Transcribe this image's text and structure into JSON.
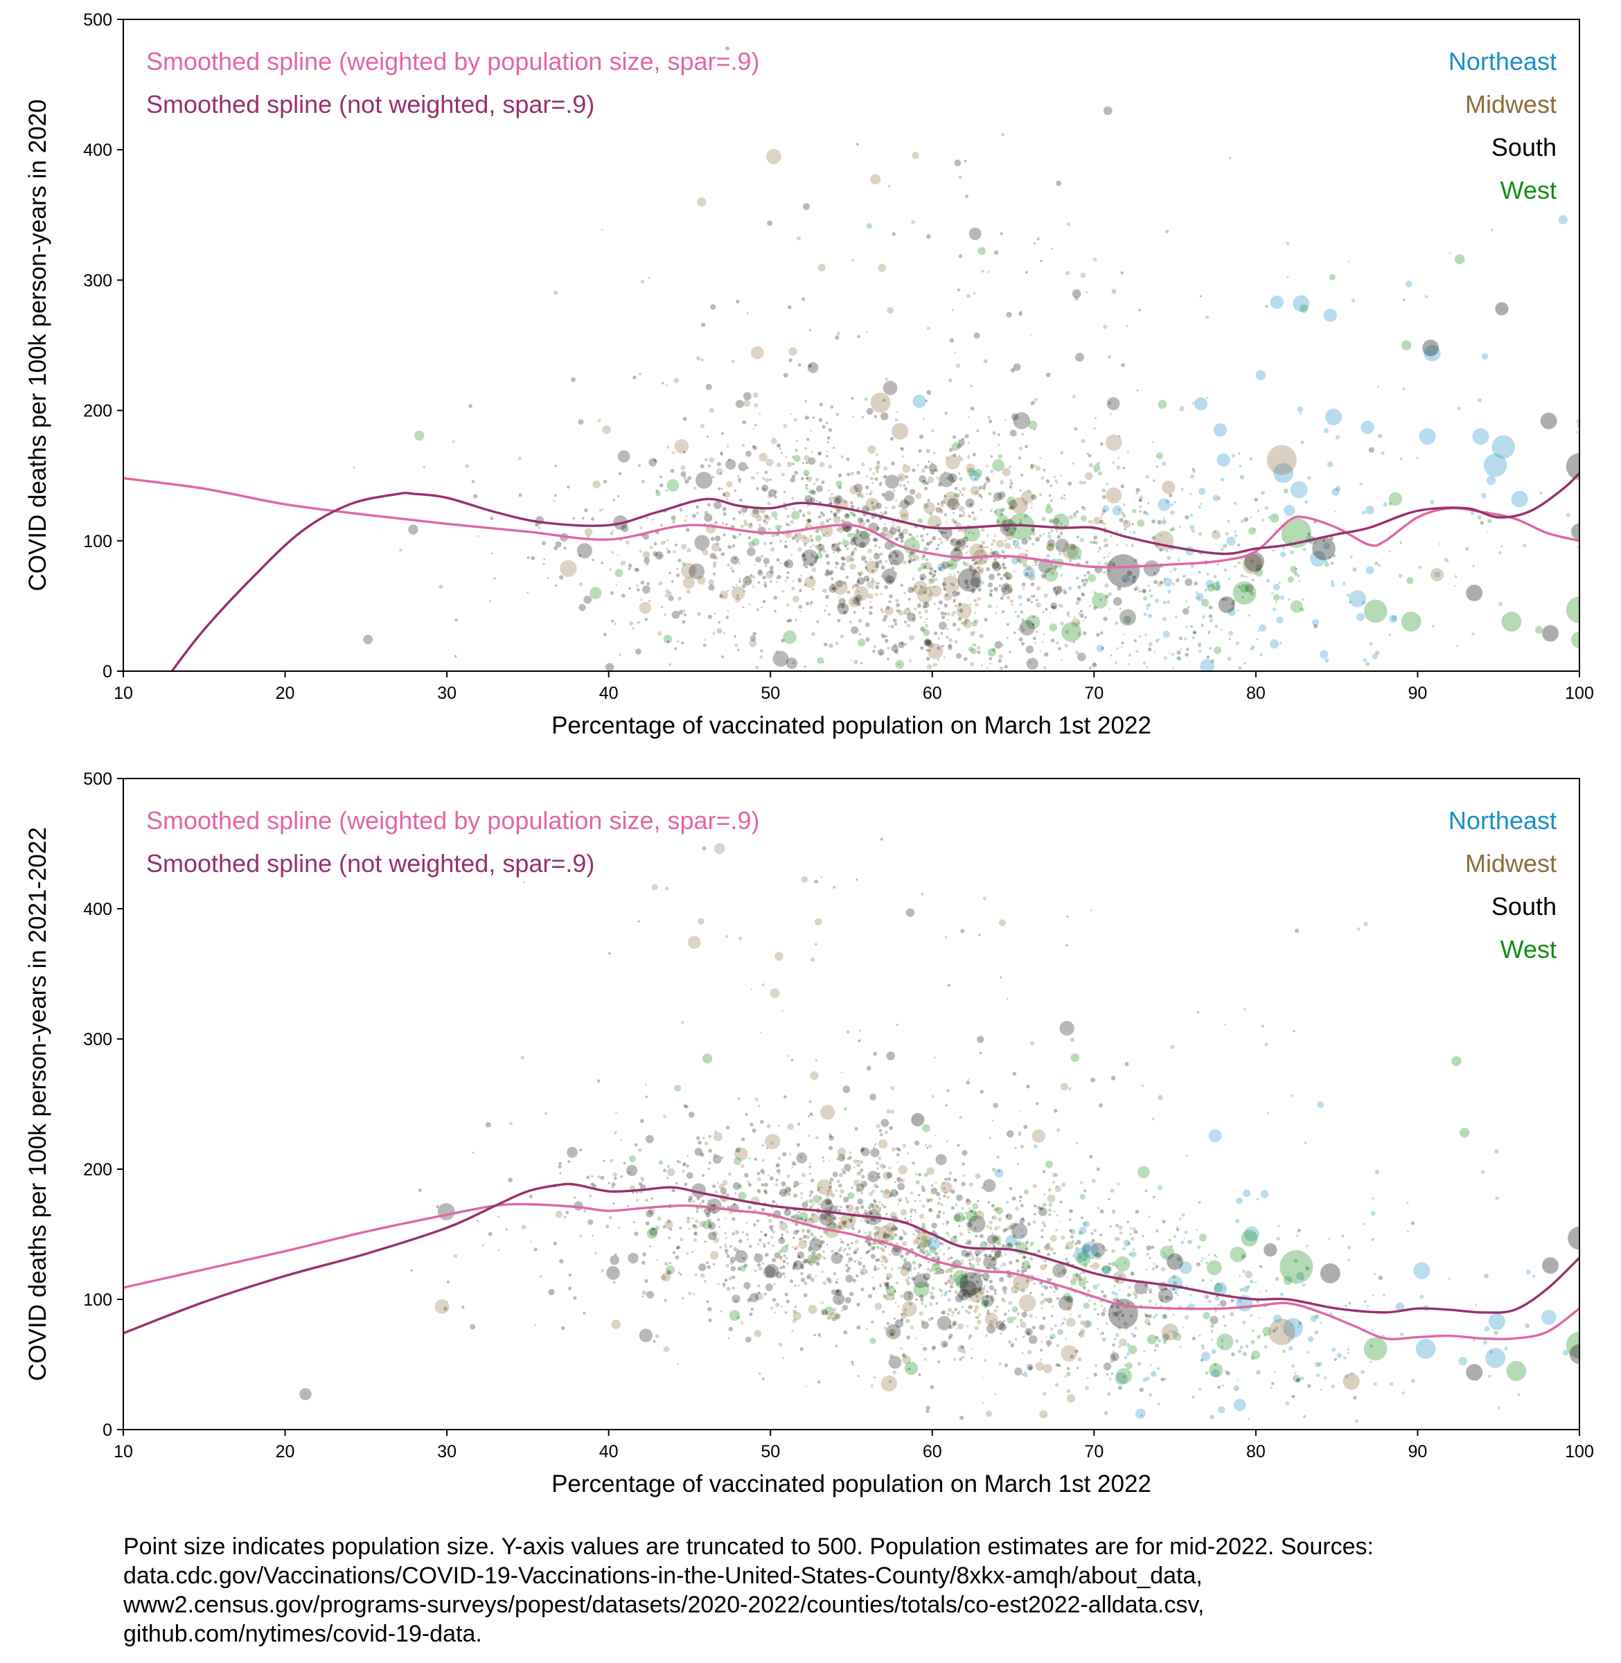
{
  "chart_data": [
    {
      "type": "scatter",
      "xlabel": "Percentage of vaccinated population on March 1st 2022",
      "ylabel": "COVID deaths per 100k person-years in 2020",
      "xlim": [
        10,
        100
      ],
      "ylim": [
        0,
        500
      ],
      "xticks": [
        10,
        20,
        30,
        40,
        50,
        60,
        70,
        80,
        90,
        100
      ],
      "yticks": [
        0,
        100,
        200,
        300,
        400,
        500
      ],
      "grid": false,
      "curves": [
        {
          "name": "Smoothed spline (weighted by population size, spar=.9)",
          "color": "#e066a6",
          "x": [
            10,
            15,
            20,
            25,
            30,
            35,
            40,
            45,
            50,
            55,
            58,
            60,
            62,
            65,
            70,
            75,
            78,
            80,
            82,
            83,
            85,
            87,
            88,
            90,
            92,
            94,
            96,
            98,
            100
          ],
          "y": [
            148,
            140,
            128,
            120,
            113,
            107,
            101,
            112,
            106,
            112,
            96,
            90,
            87,
            88,
            80,
            82,
            85,
            92,
            115,
            118,
            110,
            97,
            100,
            118,
            125,
            122,
            117,
            106,
            100
          ]
        },
        {
          "name": "Smoothed spline (not weighted, spar=.9)",
          "color": "#96306e",
          "x": [
            13,
            15,
            18,
            21,
            24,
            27,
            28,
            30,
            33,
            36,
            40,
            43,
            46,
            48,
            50,
            52,
            55,
            58,
            60,
            62,
            65,
            68,
            70,
            72,
            75,
            78,
            80,
            82,
            85,
            87,
            90,
            93,
            95,
            97,
            99,
            100
          ],
          "y": [
            0,
            32,
            72,
            107,
            128,
            136,
            136,
            133,
            122,
            114,
            112,
            122,
            132,
            127,
            125,
            129,
            124,
            115,
            110,
            110,
            112,
            110,
            110,
            103,
            95,
            90,
            94,
            97,
            105,
            110,
            123,
            125,
            118,
            123,
            140,
            152
          ]
        }
      ],
      "legend": [
        {
          "label": "Smoothed spline (weighted by population size, spar=.9)",
          "color": "#e066a6"
        },
        {
          "label": "Smoothed spline (not weighted, spar=.9)",
          "color": "#96306e"
        }
      ],
      "region_legend": [
        {
          "label": "Northeast",
          "color": "#1a8fc8"
        },
        {
          "label": "Midwest",
          "color": "#8c6d3c"
        },
        {
          "label": "South",
          "color": "#000000"
        },
        {
          "label": "West",
          "color": "#158b15"
        }
      ],
      "highlight_points": [
        {
          "region": "Northeast",
          "x": 81.3,
          "y": 283,
          "size": 4
        },
        {
          "region": "Northeast",
          "x": 82.8,
          "y": 282,
          "size": 5
        },
        {
          "region": "Northeast",
          "x": 84.6,
          "y": 273,
          "size": 4
        },
        {
          "region": "Northeast",
          "x": 90.9,
          "y": 244,
          "size": 5
        },
        {
          "region": "Northeast",
          "x": 80.3,
          "y": 227,
          "size": 3
        },
        {
          "region": "Northeast",
          "x": 76.6,
          "y": 205,
          "size": 4
        },
        {
          "region": "Northeast",
          "x": 84.8,
          "y": 195,
          "size": 5
        },
        {
          "region": "Northeast",
          "x": 90.6,
          "y": 180,
          "size": 5
        },
        {
          "region": "Northeast",
          "x": 93.9,
          "y": 180,
          "size": 5
        },
        {
          "region": "Northeast",
          "x": 95.3,
          "y": 172,
          "size": 7
        },
        {
          "region": "Northeast",
          "x": 94.8,
          "y": 158,
          "size": 7
        },
        {
          "region": "Northeast",
          "x": 96.3,
          "y": 132,
          "size": 5
        },
        {
          "region": "Northeast",
          "x": 81.7,
          "y": 152,
          "size": 6
        },
        {
          "region": "Northeast",
          "x": 78.0,
          "y": 162,
          "size": 4
        },
        {
          "region": "Northeast",
          "x": 59.2,
          "y": 207,
          "size": 4
        },
        {
          "region": "Northeast",
          "x": 86.9,
          "y": 187,
          "size": 4
        },
        {
          "region": "Northeast",
          "x": 77.8,
          "y": 185,
          "size": 4
        },
        {
          "region": "Midwest",
          "x": 81.6,
          "y": 162,
          "size": 9
        },
        {
          "region": "Midwest",
          "x": 56.8,
          "y": 206,
          "size": 6
        },
        {
          "region": "Midwest",
          "x": 58.0,
          "y": 184,
          "size": 5
        },
        {
          "region": "Midwest",
          "x": 74.3,
          "y": 100,
          "size": 6
        },
        {
          "region": "Midwest",
          "x": 79.8,
          "y": 82,
          "size": 6
        },
        {
          "region": "Midwest",
          "x": 91.2,
          "y": 74,
          "size": 4
        },
        {
          "region": "Midwest",
          "x": 65.4,
          "y": 127,
          "size": 5
        },
        {
          "region": "Midwest",
          "x": 74.6,
          "y": 141,
          "size": 4
        },
        {
          "region": "South",
          "x": 90.8,
          "y": 248,
          "size": 5
        },
        {
          "region": "South",
          "x": 95.2,
          "y": 278,
          "size": 4
        },
        {
          "region": "South",
          "x": 98.1,
          "y": 192,
          "size": 5
        },
        {
          "region": "South",
          "x": 100.0,
          "y": 157,
          "size": 8
        },
        {
          "region": "South",
          "x": 100.0,
          "y": 107,
          "size": 5
        },
        {
          "region": "South",
          "x": 71.8,
          "y": 77,
          "size": 10
        },
        {
          "region": "South",
          "x": 84.2,
          "y": 94,
          "size": 7
        },
        {
          "region": "South",
          "x": 62.3,
          "y": 70,
          "size": 7
        },
        {
          "region": "South",
          "x": 93.5,
          "y": 60,
          "size": 5
        },
        {
          "region": "South",
          "x": 98.2,
          "y": 29,
          "size": 5
        },
        {
          "region": "South",
          "x": 78.2,
          "y": 51,
          "size": 5
        },
        {
          "region": "South",
          "x": 79.9,
          "y": 84,
          "size": 6
        },
        {
          "region": "West",
          "x": 82.5,
          "y": 106,
          "size": 9
        },
        {
          "region": "West",
          "x": 87.4,
          "y": 46,
          "size": 7
        },
        {
          "region": "West",
          "x": 100.0,
          "y": 47,
          "size": 8
        },
        {
          "region": "West",
          "x": 100.0,
          "y": 24,
          "size": 5
        },
        {
          "region": "West",
          "x": 95.8,
          "y": 38,
          "size": 6
        },
        {
          "region": "West",
          "x": 89.6,
          "y": 38,
          "size": 6
        },
        {
          "region": "West",
          "x": 79.3,
          "y": 60,
          "size": 7
        },
        {
          "region": "West",
          "x": 65.5,
          "y": 111,
          "size": 8
        },
        {
          "region": "West",
          "x": 68.6,
          "y": 30,
          "size": 6
        },
        {
          "region": "West",
          "x": 92.6,
          "y": 316,
          "size": 3
        },
        {
          "region": "West",
          "x": 89.3,
          "y": 250,
          "size": 3
        }
      ]
    },
    {
      "type": "scatter",
      "xlabel": "Percentage of vaccinated population on March 1st 2022",
      "ylabel": "COVID deaths per 100k person-years in 2021-2022",
      "xlim": [
        10,
        100
      ],
      "ylim": [
        0,
        500
      ],
      "xticks": [
        10,
        20,
        30,
        40,
        50,
        60,
        70,
        80,
        90,
        100
      ],
      "yticks": [
        0,
        100,
        200,
        300,
        400,
        500
      ],
      "grid": false,
      "curves": [
        {
          "name": "Smoothed spline (weighted by population size, spar=.9)",
          "color": "#e066a6",
          "x": [
            10,
            15,
            20,
            25,
            30,
            33,
            35,
            38,
            40,
            42,
            45,
            48,
            50,
            53,
            55,
            58,
            60,
            63,
            65,
            68,
            70,
            72,
            75,
            78,
            80,
            82,
            84,
            86,
            88,
            90,
            92,
            94,
            96,
            98,
            100
          ],
          "y": [
            109,
            123,
            137,
            152,
            165,
            172,
            173,
            171,
            168,
            170,
            172,
            168,
            165,
            155,
            150,
            140,
            130,
            122,
            120,
            110,
            102,
            95,
            93,
            93,
            95,
            97,
            90,
            80,
            70,
            71,
            72,
            70,
            70,
            75,
            93
          ],
          "label": ""
        },
        {
          "name": "Smoothed spline (not weighted, spar=.9)",
          "color": "#96306e",
          "x": [
            10,
            15,
            20,
            25,
            30,
            33,
            35,
            37,
            38,
            40,
            42,
            44,
            46,
            50,
            53,
            55,
            58,
            60,
            62,
            65,
            68,
            70,
            72,
            75,
            78,
            80,
            82,
            85,
            88,
            90,
            92,
            94,
            96,
            98,
            100
          ],
          "y": [
            74,
            98,
            118,
            135,
            155,
            172,
            183,
            188,
            188,
            183,
            184,
            186,
            181,
            172,
            168,
            165,
            160,
            150,
            140,
            138,
            128,
            120,
            115,
            110,
            103,
            100,
            100,
            93,
            90,
            93,
            92,
            90,
            92,
            108,
            132
          ]
        }
      ],
      "legend": [
        {
          "label": "Smoothed spline (weighted by population size, spar=.9)",
          "color": "#e066a6"
        },
        {
          "label": "Smoothed spline (not weighted, spar=.9)",
          "color": "#96306e"
        }
      ],
      "region_legend": [
        {
          "label": "Northeast",
          "color": "#1a8fc8"
        },
        {
          "label": "Midwest",
          "color": "#8c6d3c"
        },
        {
          "label": "South",
          "color": "#000000"
        },
        {
          "label": "West",
          "color": "#158b15"
        }
      ],
      "highlight_points": [
        {
          "region": "West",
          "x": 82.5,
          "y": 125,
          "size": 10
        },
        {
          "region": "West",
          "x": 87.4,
          "y": 62,
          "size": 7
        },
        {
          "region": "West",
          "x": 100.0,
          "y": 65,
          "size": 8
        },
        {
          "region": "West",
          "x": 92.4,
          "y": 283,
          "size": 3
        },
        {
          "region": "West",
          "x": 92.9,
          "y": 228,
          "size": 3
        },
        {
          "region": "West",
          "x": 96.1,
          "y": 45,
          "size": 6
        },
        {
          "region": "West",
          "x": 79.6,
          "y": 147,
          "size": 5
        },
        {
          "region": "West",
          "x": 46.1,
          "y": 285,
          "size": 3
        },
        {
          "region": "West",
          "x": 58.7,
          "y": 47,
          "size": 4
        },
        {
          "region": "South",
          "x": 100.0,
          "y": 147,
          "size": 7
        },
        {
          "region": "South",
          "x": 98.2,
          "y": 126,
          "size": 5
        },
        {
          "region": "South",
          "x": 84.6,
          "y": 120,
          "size": 6
        },
        {
          "region": "South",
          "x": 71.8,
          "y": 89,
          "size": 9
        },
        {
          "region": "South",
          "x": 100.0,
          "y": 58,
          "size": 6
        },
        {
          "region": "South",
          "x": 80.9,
          "y": 138,
          "size": 4
        },
        {
          "region": "South",
          "x": 75.0,
          "y": 129,
          "size": 5
        },
        {
          "region": "South",
          "x": 59.1,
          "y": 238,
          "size": 4
        },
        {
          "region": "South",
          "x": 93.5,
          "y": 44,
          "size": 5
        },
        {
          "region": "South",
          "x": 62.4,
          "y": 112,
          "size": 7
        },
        {
          "region": "Northeast",
          "x": 94.8,
          "y": 55,
          "size": 6
        },
        {
          "region": "Northeast",
          "x": 90.5,
          "y": 62,
          "size": 6
        },
        {
          "region": "Northeast",
          "x": 82.3,
          "y": 78,
          "size": 6
        },
        {
          "region": "Northeast",
          "x": 79.3,
          "y": 97,
          "size": 5
        },
        {
          "region": "Northeast",
          "x": 94.9,
          "y": 83,
          "size": 5
        },
        {
          "region": "Northeast",
          "x": 60.1,
          "y": 143,
          "size": 4
        },
        {
          "region": "Northeast",
          "x": 77.8,
          "y": 108,
          "size": 4
        },
        {
          "region": "Midwest",
          "x": 81.6,
          "y": 75,
          "size": 8
        },
        {
          "region": "Midwest",
          "x": 57.1,
          "y": 150,
          "size": 5
        },
        {
          "region": "Midwest",
          "x": 74.7,
          "y": 75,
          "size": 5
        },
        {
          "region": "Midwest",
          "x": 65.5,
          "y": 113,
          "size": 5
        },
        {
          "region": "Midwest",
          "x": 85.9,
          "y": 37,
          "size": 5
        }
      ]
    }
  ],
  "caption": [
    "Point size indicates population size. Y-axis values are truncated to 500. Population estimates are for mid-2022. Sources:",
    "data.cdc.gov/Vaccinations/COVID-19-Vaccinations-in-the-United-States-County/8xkx-amqh/about_data,",
    "www2.census.gov/programs-surveys/popest/datasets/2020-2022/counties/totals/co-est2022-alldata.csv,",
    "github.com/nytimes/covid-19-data."
  ]
}
